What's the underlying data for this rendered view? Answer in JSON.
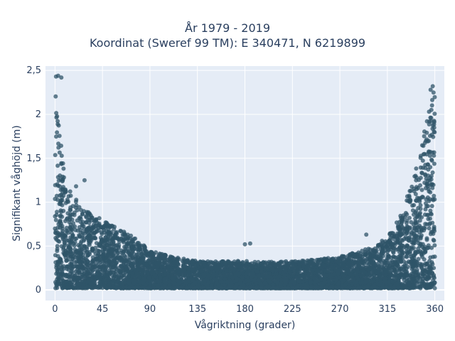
{
  "chart_data": {
    "type": "scatter",
    "title_lines": [
      "År 1979 - 2019",
      "Koordinat (Sweref 99 TM): E 340471, N 6219899"
    ],
    "xlabel": "Vågriktning (grader)",
    "ylabel": "Signifikant våghöjd (m)",
    "xlim": [
      -9,
      369
    ],
    "ylim": [
      -0.12,
      2.55
    ],
    "x_ticks": [
      0,
      45,
      90,
      135,
      180,
      225,
      270,
      315,
      360
    ],
    "x_tick_labels": [
      "0",
      "45",
      "90",
      "135",
      "180",
      "225",
      "270",
      "315",
      "360"
    ],
    "y_ticks": [
      0,
      0.5,
      1,
      1.5,
      2,
      2.5
    ],
    "y_tick_labels": [
      "0",
      "0,5",
      "1",
      "1,5",
      "2",
      "2,5"
    ],
    "grid": true,
    "marker_color": "#2f5468",
    "background_color": "#e5ecf6",
    "envelope": {
      "x": [
        0,
        5,
        10,
        20,
        30,
        45,
        60,
        75,
        90,
        110,
        135,
        160,
        180,
        200,
        225,
        250,
        270,
        290,
        305,
        315,
        325,
        335,
        345,
        350,
        355,
        360
      ],
      "max_y": [
        2.45,
        1.75,
        1.2,
        1.05,
        0.9,
        0.8,
        0.7,
        0.6,
        0.45,
        0.38,
        0.33,
        0.33,
        0.33,
        0.32,
        0.33,
        0.35,
        0.38,
        0.45,
        0.5,
        0.6,
        0.8,
        1.1,
        1.5,
        1.8,
        2.1,
        2.32
      ]
    },
    "outliers": [
      {
        "x": 1,
        "y": 2.43
      },
      {
        "x": 3,
        "y": 2.44
      },
      {
        "x": 6,
        "y": 2.42
      },
      {
        "x": 28,
        "y": 1.25
      },
      {
        "x": 20,
        "y": 1.18
      },
      {
        "x": 185,
        "y": 0.53
      },
      {
        "x": 180,
        "y": 0.52
      },
      {
        "x": 295,
        "y": 0.63
      },
      {
        "x": 310,
        "y": 0.56
      },
      {
        "x": 358,
        "y": 2.32
      },
      {
        "x": 356,
        "y": 2.28
      }
    ]
  }
}
